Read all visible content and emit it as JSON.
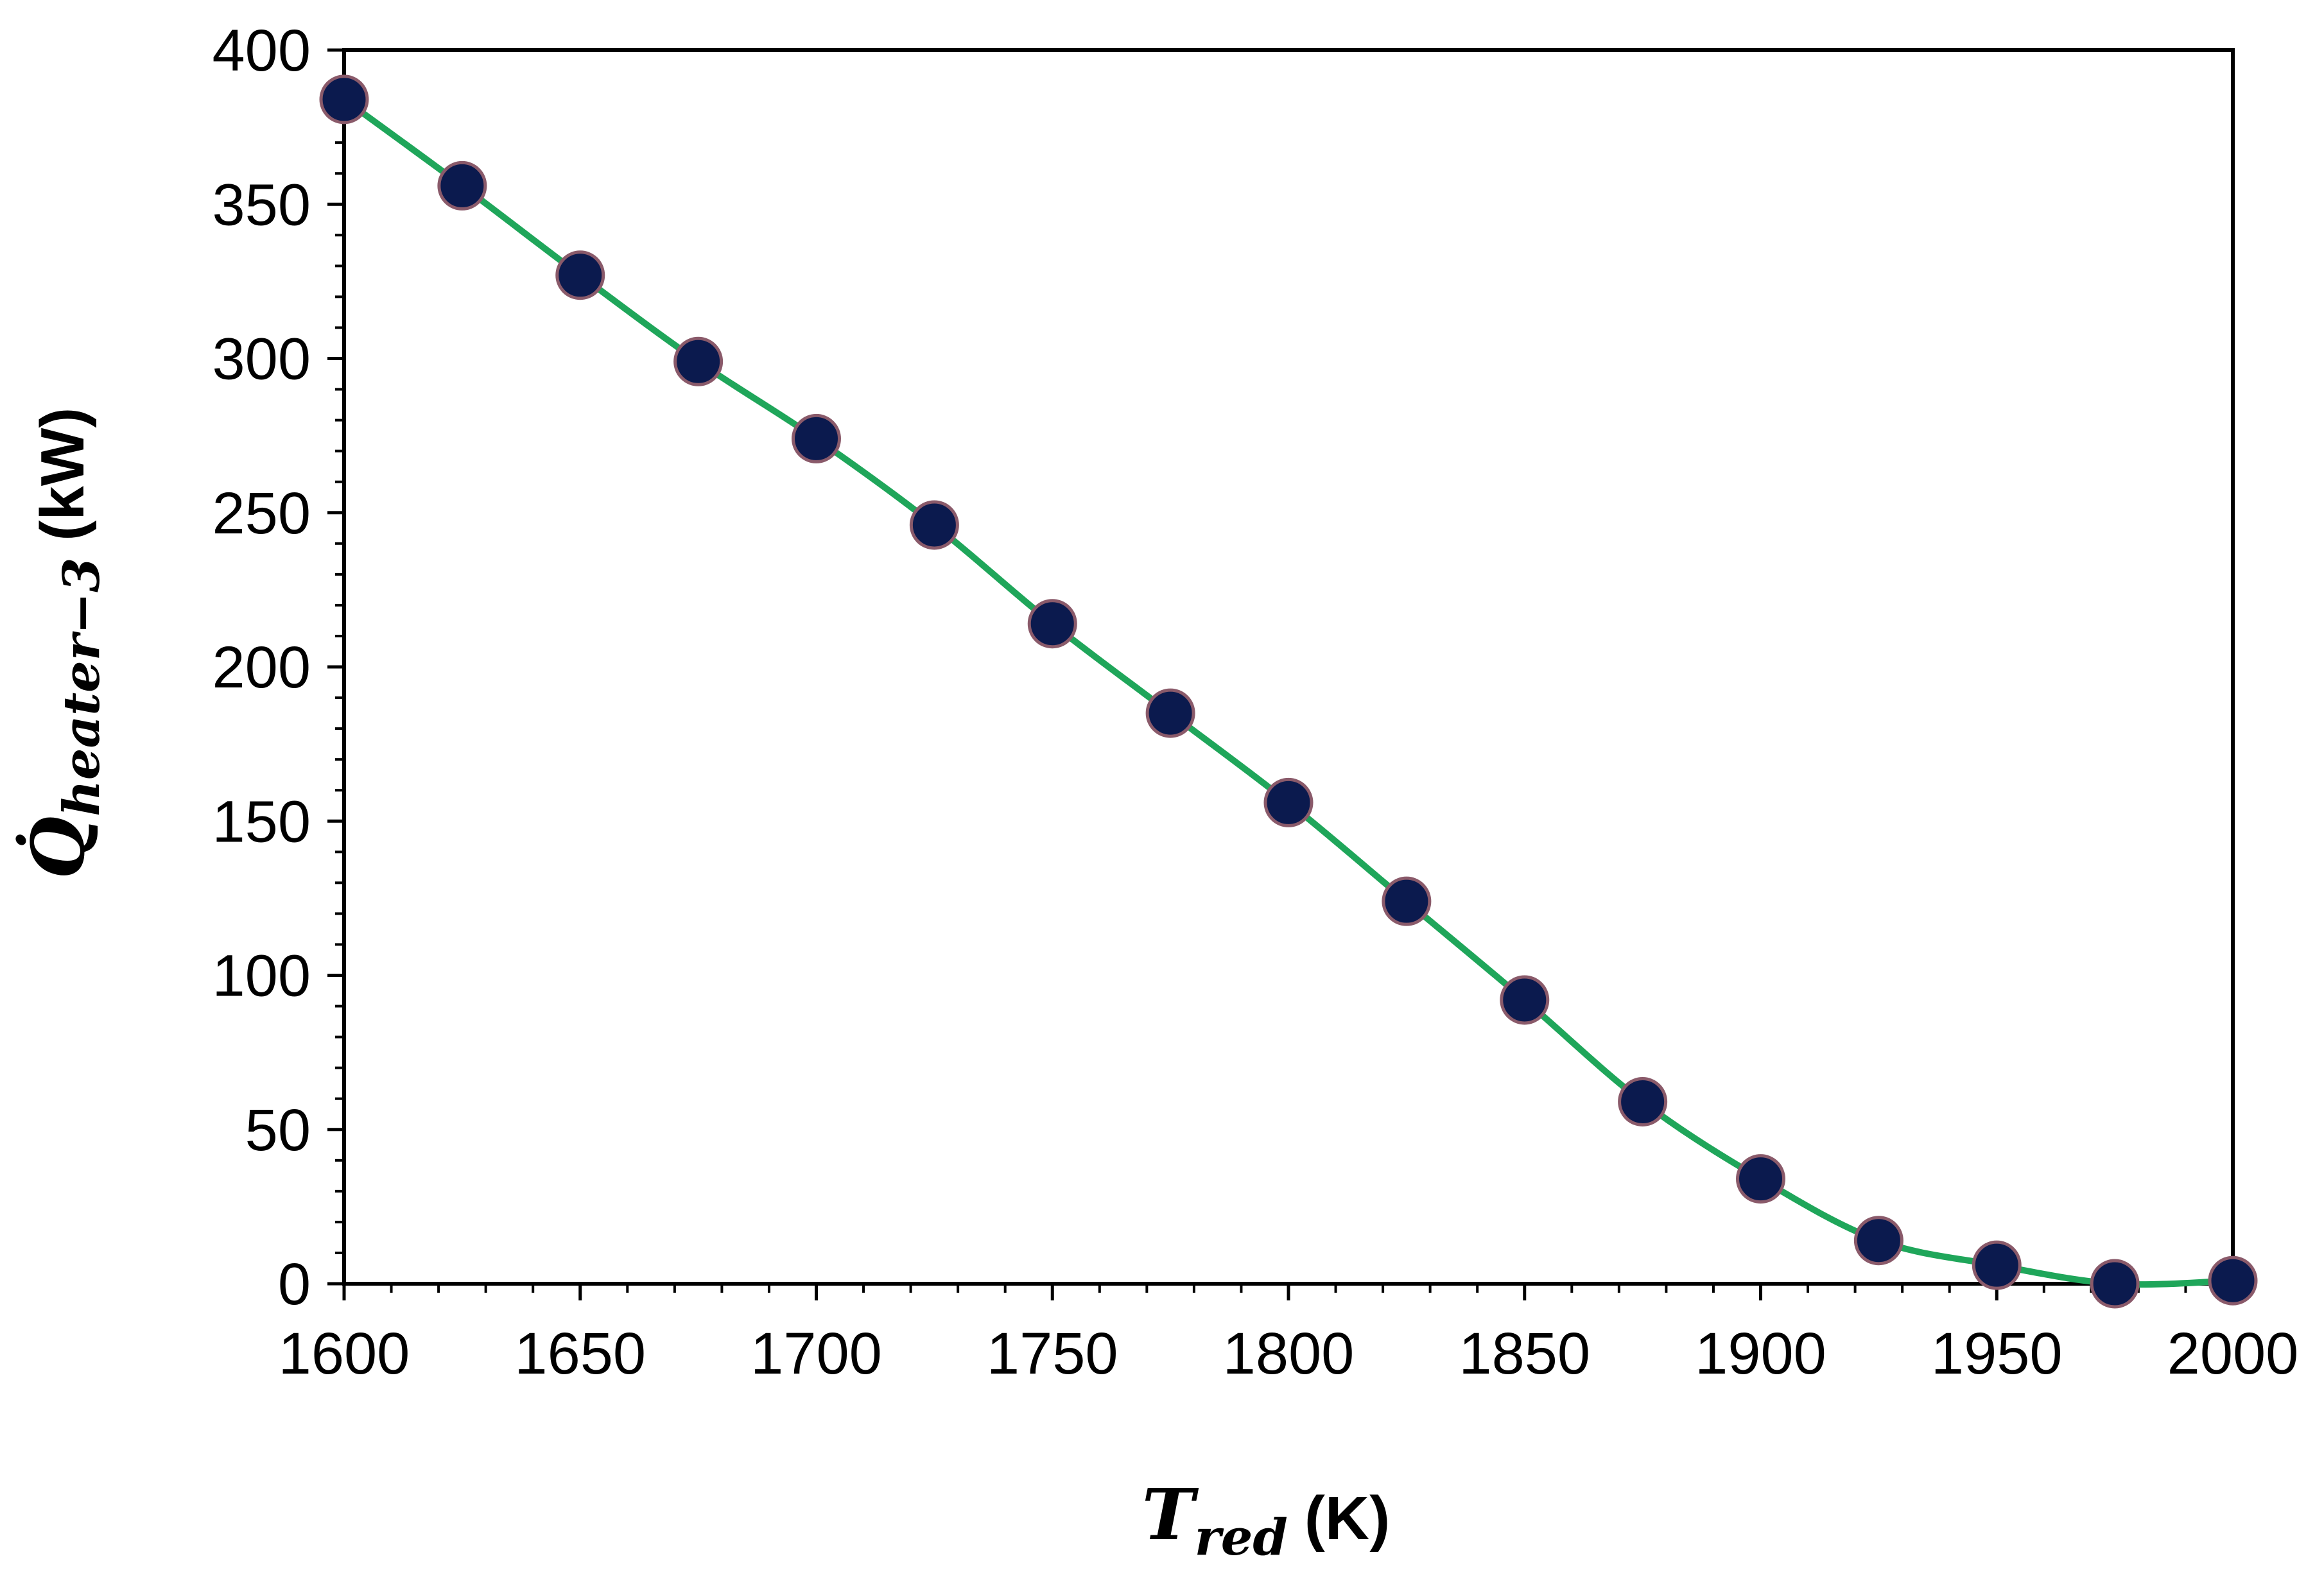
{
  "chart_data": {
    "type": "line",
    "title": "",
    "xlabel": {
      "symbol": "T",
      "subscript": "red",
      "unit": "(K)"
    },
    "ylabel": {
      "symbol": "Q̇",
      "subscript": "heater−3",
      "unit": "(kW)"
    },
    "xlim": [
      1600,
      2000
    ],
    "ylim": [
      0,
      400
    ],
    "xticks": [
      1600,
      1650,
      1700,
      1750,
      1800,
      1850,
      1900,
      1950,
      2000
    ],
    "yticks": [
      0,
      50,
      100,
      150,
      200,
      250,
      300,
      350,
      400
    ],
    "grid": false,
    "legend": "none",
    "series": [
      {
        "line_color": "#1fa65a",
        "marker_color": "#0b1a4e",
        "marker_edge_color": "#8a5a6a",
        "x": [
          1600,
          1625,
          1650,
          1675,
          1700,
          1725,
          1750,
          1775,
          1800,
          1825,
          1850,
          1875,
          1900,
          1925,
          1950,
          1975,
          2000
        ],
        "y": [
          384,
          356,
          327,
          299,
          274,
          246,
          214,
          185,
          156,
          124,
          92,
          59,
          34,
          14,
          6,
          0,
          1
        ]
      }
    ]
  }
}
